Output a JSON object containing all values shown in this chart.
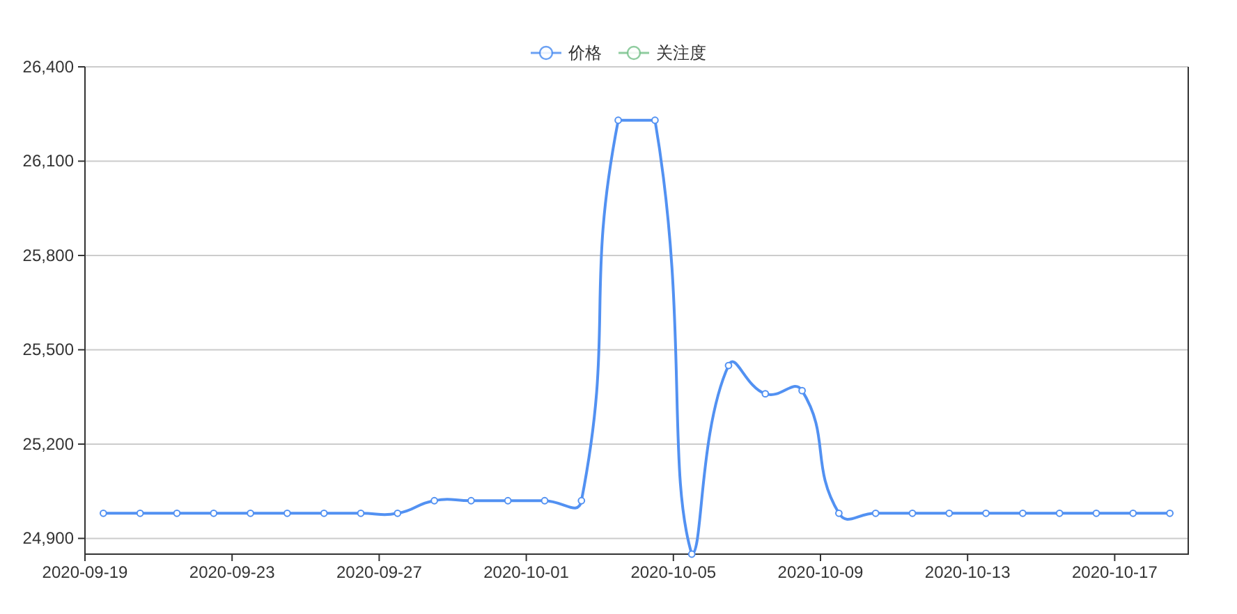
{
  "chart_data": {
    "type": "line",
    "x": [
      "2020-09-19T12:00",
      "2020-09-20T12:00",
      "2020-09-21T12:00",
      "2020-09-22T12:00",
      "2020-09-23T12:00",
      "2020-09-24T12:00",
      "2020-09-25T12:00",
      "2020-09-26T12:00",
      "2020-09-27T12:00",
      "2020-09-28T12:00",
      "2020-09-29T12:00",
      "2020-09-30T12:00",
      "2020-10-01T12:00",
      "2020-10-02T12:00",
      "2020-10-03T12:00",
      "2020-10-04T12:00",
      "2020-10-05T12:00",
      "2020-10-06T12:00",
      "2020-10-07T12:00",
      "2020-10-08T12:00",
      "2020-10-09T12:00",
      "2020-10-10T12:00",
      "2020-10-11T12:00",
      "2020-10-12T12:00",
      "2020-10-13T12:00",
      "2020-10-14T12:00",
      "2020-10-15T12:00",
      "2020-10-16T12:00",
      "2020-10-17T12:00",
      "2020-10-18T12:00"
    ],
    "series": [
      {
        "name": "价格",
        "color": "#5291f2",
        "values": [
          24980,
          24980,
          24980,
          24980,
          24980,
          24980,
          24980,
          24980,
          24980,
          25020,
          25020,
          25020,
          25020,
          25020,
          26230,
          26230,
          24850,
          25450,
          25360,
          25370,
          24980,
          24980,
          24980,
          24980,
          24980,
          24980,
          24980,
          24980,
          24980,
          24980
        ]
      },
      {
        "name": "关注度",
        "color": "#7cc48f",
        "values": [
          null,
          null,
          null,
          null,
          null,
          null,
          null,
          null,
          null,
          null,
          null,
          null,
          null,
          null,
          null,
          null,
          null,
          null,
          null,
          null,
          null,
          null,
          null,
          null,
          null,
          null,
          null,
          null,
          null,
          null
        ]
      }
    ],
    "xlim": [
      "2020-09-19",
      "2020-10-19"
    ],
    "xticks": [
      "2020-09-19",
      "2020-09-23",
      "2020-09-27",
      "2020-10-01",
      "2020-10-05",
      "2020-10-09",
      "2020-10-13",
      "2020-10-17"
    ],
    "ylim": [
      24850,
      26400
    ],
    "yticks": [
      {
        "value": 24900,
        "label": "24,900"
      },
      {
        "value": 25200,
        "label": "25,200"
      },
      {
        "value": 25500,
        "label": "25,500"
      },
      {
        "value": 25800,
        "label": "25,800"
      },
      {
        "value": 26100,
        "label": "26,100"
      },
      {
        "value": 26400,
        "label": "26,400"
      }
    ],
    "grid": "y",
    "legend": "top",
    "marker": "circle",
    "line_style": "solid"
  }
}
